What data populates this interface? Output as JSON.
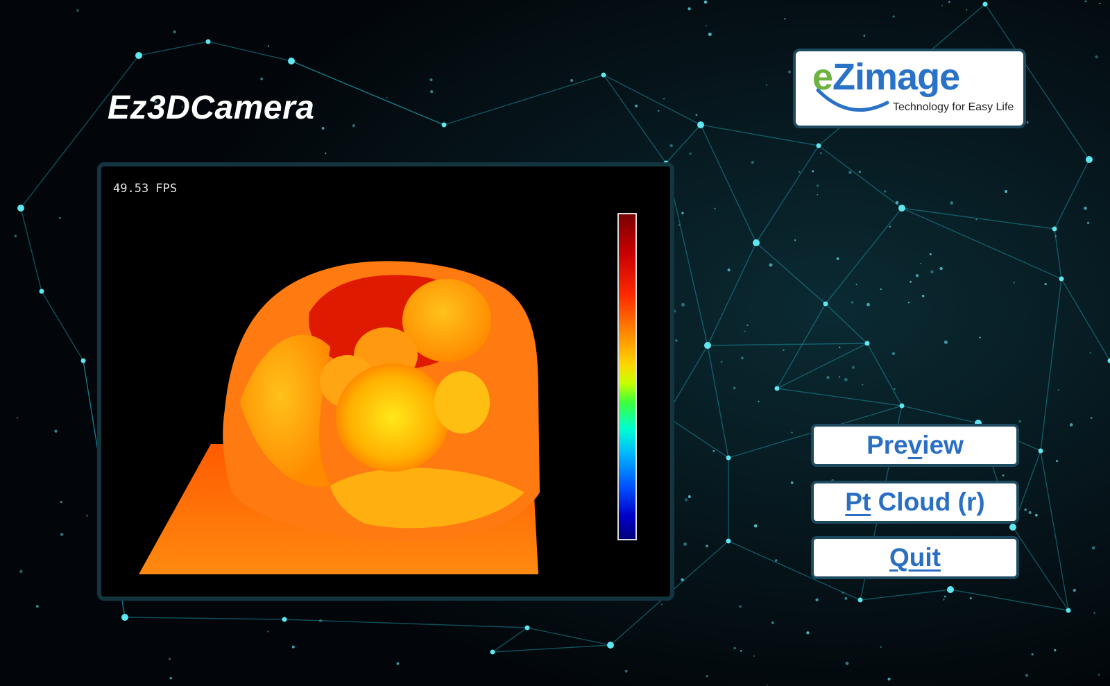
{
  "app": {
    "title": "Ez3DCamera"
  },
  "logo": {
    "brand_e": "e",
    "brand_rest": "Zimage",
    "tagline": "Technology for Easy Life"
  },
  "viewer": {
    "fps_text": "49.53 FPS",
    "colormap": "jet"
  },
  "buttons": {
    "preview": {
      "pre": "Pre",
      "key": "v",
      "post": "iew"
    },
    "pt_cloud": {
      "pre": "",
      "key": "Pt",
      "post": " Cloud (r)"
    },
    "quit": {
      "pre": "",
      "key": "Quit",
      "post": ""
    }
  },
  "colors": {
    "accent": "#2a6fc4",
    "frame": "#1d4a5e",
    "network": "#1fa8b8"
  }
}
